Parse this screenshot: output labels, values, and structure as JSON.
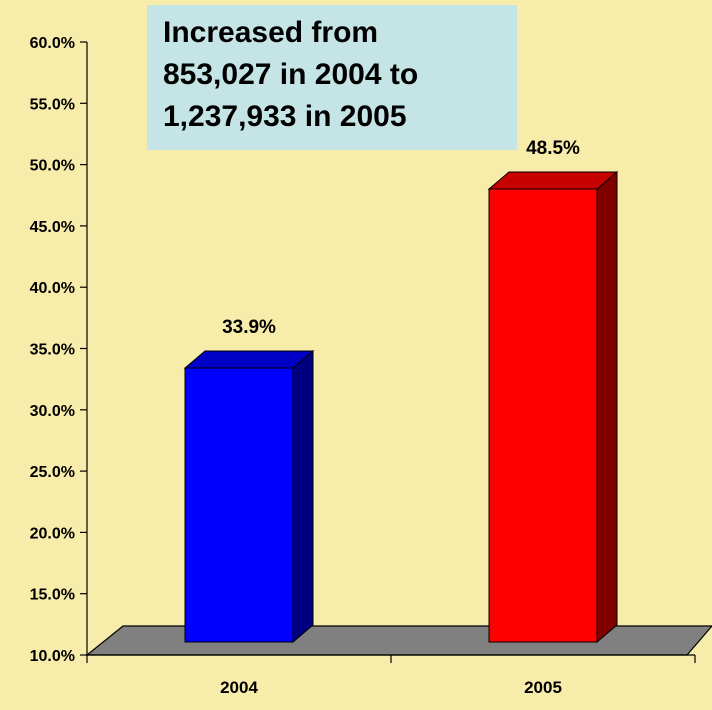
{
  "chart_data": {
    "type": "bar",
    "categories": [
      "2004",
      "2005"
    ],
    "values": [
      33.9,
      48.5
    ],
    "value_labels": [
      "33.9%",
      "48.5%"
    ],
    "ylim": [
      10,
      60
    ],
    "yticks": [
      "10.0%",
      "15.0%",
      "20.0%",
      "25.0%",
      "30.0%",
      "35.0%",
      "40.0%",
      "45.0%",
      "50.0%",
      "55.0%",
      "60.0%"
    ],
    "grid": false,
    "three_d": true,
    "bar_colors": [
      "#0000ff",
      "#ff0000"
    ],
    "annotation": [
      "Increased from",
      "853,027 in 2004 to",
      "1,237,933 in 2005"
    ]
  },
  "colors": {
    "background": "#f8ecaa",
    "floor": "#808080",
    "annotation_box": "#c4e4e6"
  }
}
